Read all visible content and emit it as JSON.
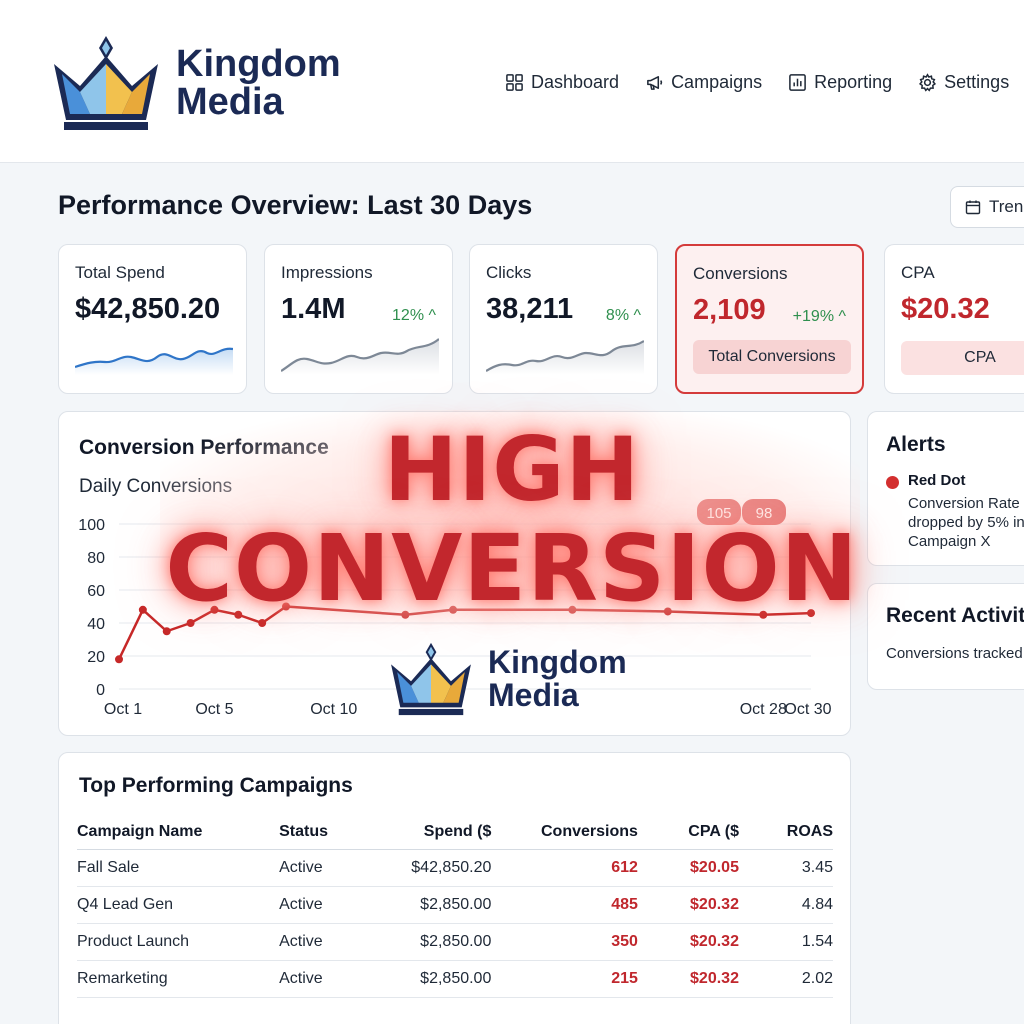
{
  "brand": {
    "line1": "Kingdom",
    "line2": "Media"
  },
  "nav": {
    "items": [
      {
        "label": "Dashboard",
        "icon": "grid-icon"
      },
      {
        "label": "Campaigns",
        "icon": "megaphone-icon"
      },
      {
        "label": "Reporting",
        "icon": "bar-chart-icon"
      },
      {
        "label": "Settings",
        "icon": "gear-icon"
      }
    ]
  },
  "page": {
    "title": "Performance Overview: Last 30 Days",
    "trend_label": "Trend"
  },
  "kpis": [
    {
      "label": "Total Spend",
      "value": "$42,850.20",
      "delta": ""
    },
    {
      "label": "Impressions",
      "value": "1.4M",
      "delta": "12% ^"
    },
    {
      "label": "Clicks",
      "value": "38,211",
      "delta": "8% ^"
    },
    {
      "label": "Conversions",
      "value": "2,109",
      "delta": "+19% ^",
      "pill": "Total Conversions"
    },
    {
      "label": "CPA",
      "value": "$20.32",
      "pill": "CPA"
    }
  ],
  "chart": {
    "title": "Conversion Performance",
    "subtitle": "Daily Conversions",
    "badges": [
      "105",
      "98"
    ]
  },
  "chart_data": {
    "type": "line",
    "title": "Conversion Performance",
    "subtitle": "Daily Conversions",
    "yticks": [
      "100",
      "80",
      "60",
      "40",
      "20",
      "0"
    ],
    "xticks": [
      "Oct 1",
      "Oct 5",
      "Oct 10",
      "Oct 28",
      "Oct 30"
    ],
    "ylim": [
      0,
      100
    ],
    "series": [
      {
        "x": [
          1,
          2,
          3,
          4,
          5,
          6,
          7,
          8,
          13,
          15,
          20,
          24,
          28,
          30
        ],
        "values": [
          18,
          48,
          35,
          40,
          48,
          45,
          40,
          50,
          45,
          48,
          48,
          47,
          45,
          46
        ]
      }
    ],
    "grid": true
  },
  "alerts": {
    "title": "Alerts",
    "name": "Red Dot",
    "text": "Conversion Rate dropped by 5% in Campaign X"
  },
  "activity": {
    "title": "Recent Activity",
    "text": "Conversions tracked"
  },
  "table": {
    "title": "Top Performing Campaigns",
    "headers": [
      "Campaign Name",
      "Status",
      "Spend ($",
      "Conversions",
      "CPA ($",
      "ROAS"
    ],
    "rows": [
      [
        "Fall Sale",
        "Active",
        "$42,850.20",
        "612",
        "$20.05",
        "3.45"
      ],
      [
        "Q4 Lead Gen",
        "Active",
        "$2,850.00",
        "485",
        "$20.32",
        "4.84"
      ],
      [
        "Product Launch",
        "Active",
        "$2,850.00",
        "350",
        "$20.32",
        "1.54"
      ],
      [
        "Remarketing",
        "Active",
        "$2,850.00",
        "215",
        "$20.32",
        "2.02"
      ]
    ]
  },
  "overlay": {
    "line1": "HIGH",
    "line2": "CONVERSION"
  },
  "colors": {
    "accent_red": "#c0272d",
    "brand_navy": "#1b2a55",
    "positive_green": "#2f8f4e"
  }
}
